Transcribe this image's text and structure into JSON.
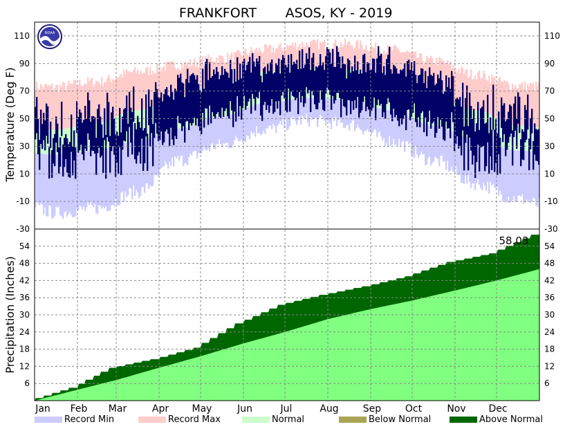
{
  "chart_data": {
    "type": "area",
    "title_left": "FRANKFORT",
    "title_right": "ASOS, KY - 2019",
    "logo_text": "NOAA",
    "months": [
      "Jan",
      "Feb",
      "Mar",
      "Apr",
      "May",
      "Jun",
      "Jul",
      "Aug",
      "Sep",
      "Oct",
      "Nov",
      "Dec"
    ],
    "temperature": {
      "ylabel": "Temperature (Deg F)",
      "ylim": [
        -30,
        120
      ],
      "ticks": [
        -30,
        -10,
        10,
        30,
        50,
        70,
        90,
        110
      ],
      "record_max_monthly": [
        73,
        77,
        84,
        89,
        94,
        100,
        104,
        104,
        100,
        92,
        82,
        74
      ],
      "normal_max_monthly": [
        42,
        47,
        56,
        67,
        76,
        84,
        87,
        86,
        80,
        69,
        56,
        45
      ],
      "normal_min_monthly": [
        24,
        27,
        34,
        43,
        52,
        61,
        65,
        64,
        56,
        45,
        35,
        27
      ],
      "record_min_monthly": [
        -18,
        -15,
        -3,
        20,
        31,
        42,
        49,
        46,
        34,
        20,
        3,
        -8
      ],
      "observed_high_monthly": [
        40,
        50,
        52,
        71,
        82,
        85,
        90,
        88,
        88,
        76,
        53,
        50
      ],
      "observed_low_monthly": [
        24,
        28,
        32,
        43,
        58,
        63,
        68,
        64,
        59,
        48,
        28,
        33
      ]
    },
    "precipitation": {
      "ylabel": "Precipitation (Inches)",
      "ylim": [
        0,
        60
      ],
      "ticks": [
        6,
        12,
        18,
        24,
        30,
        36,
        42,
        48,
        54
      ],
      "annotation": "58.03",
      "observed_cumulative_monthly_end": [
        4.5,
        11.5,
        14.5,
        18.5,
        27.0,
        33.5,
        37.0,
        40.0,
        43.5,
        48.5,
        51.5,
        58.03
      ],
      "normal_cumulative_monthly_end": [
        3.8,
        7.2,
        11.5,
        15.5,
        20.0,
        24.0,
        28.5,
        32.0,
        35.0,
        38.5,
        42.0,
        46.0
      ]
    },
    "legend": [
      {
        "label": "Record Min",
        "color": "#ccccff"
      },
      {
        "label": "Record Max",
        "color": "#ffcccc"
      },
      {
        "label": "Normal",
        "color": "#ccffcc"
      },
      {
        "label": "Below Normal",
        "color": "#aaa555"
      },
      {
        "label": "Above Normal",
        "color": "#006600"
      }
    ],
    "colors": {
      "record_min": "#ccccff",
      "record_max": "#ffcccc",
      "normal": "#ccffcc",
      "observed": "#000066",
      "precip_normal": "#80ff80",
      "precip_above": "#006600",
      "grid": "#888888"
    }
  }
}
